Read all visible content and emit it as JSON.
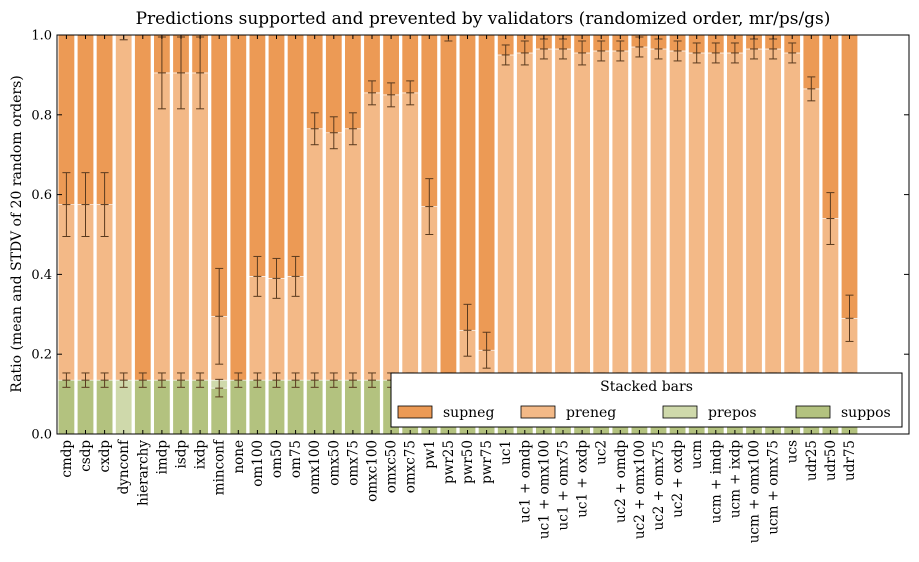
{
  "chart_data": {
    "type": "bar",
    "stacked": true,
    "title": "Predictions supported and prevented by validators (randomized order, mr/ps/gs)",
    "ylabel": "Ratio (mean and STDV of 20 random orders)",
    "xlabel": "",
    "ylim": [
      0,
      1
    ],
    "yticks": [
      "0.0",
      "0.2",
      "0.4",
      "0.6",
      "0.8",
      "1.0"
    ],
    "grid": false,
    "legend": {
      "title": "Stacked bars",
      "placement": "lower-right"
    },
    "categories": [
      "cmdp",
      "csdp",
      "cxdp",
      "dynconf",
      "hierarchy",
      "imdp",
      "isdp",
      "ixdp",
      "minconf",
      "none",
      "om100",
      "om50",
      "om75",
      "omx100",
      "omx50",
      "omx75",
      "omxc100",
      "omxc50",
      "omxc75",
      "pw1",
      "pwr25",
      "pwr50",
      "pwr75",
      "uc1",
      "uc1 + omdp",
      "uc1 + omx100",
      "uc1 + omx75",
      "uc1 + oxdp",
      "uc2",
      "uc2 + omdp",
      "uc2 + omx100",
      "uc2 + omx75",
      "uc2 + oxdp",
      "ucm",
      "ucm + imdp",
      "ucm + ixdp",
      "ucm + omx100",
      "ucm + omx75",
      "ucs",
      "udr25",
      "udr50",
      "udr75"
    ],
    "series": [
      {
        "name": "suppos",
        "color": "#b3c27f",
        "values": [
          0.135,
          0.135,
          0.135,
          0,
          0.135,
          0.135,
          0.135,
          0.135,
          0.115,
          0.135,
          0.135,
          0.135,
          0.135,
          0.135,
          0.135,
          0.135,
          0.135,
          0.135,
          0.135,
          0.135,
          0.135,
          0.135,
          0.135,
          0.135,
          0.135,
          0.135,
          0.135,
          0.135,
          0.135,
          0.135,
          0.135,
          0.135,
          0.135,
          0.135,
          0.135,
          0.135,
          0.135,
          0.135,
          0.135,
          0.135,
          0.135,
          0.135
        ],
        "err": [
          0.018,
          0.018,
          0.018,
          0,
          0.018,
          0.018,
          0.018,
          0.018,
          0.022,
          0.018,
          0.018,
          0.018,
          0.018,
          0.018,
          0.018,
          0.018,
          0.018,
          0.018,
          0.018,
          0.018,
          0.018,
          0.018,
          0.018,
          0.018,
          0.018,
          0.018,
          0.018,
          0.018,
          0.018,
          0.018,
          0.018,
          0.018,
          0.018,
          0.018,
          0.018,
          0.018,
          0.018,
          0.018,
          0.018,
          0.018,
          0.018,
          0.018
        ]
      },
      {
        "name": "prepos",
        "color": "#cfd9ab",
        "values": [
          0,
          0,
          0,
          0.135,
          0,
          0,
          0,
          0,
          0.02,
          0,
          0,
          0,
          0,
          0,
          0,
          0,
          0,
          0,
          0,
          0,
          0,
          0,
          0,
          0,
          0,
          0,
          0,
          0,
          0,
          0,
          0,
          0,
          0,
          0,
          0,
          0,
          0,
          0,
          0,
          0,
          0,
          0
        ],
        "err": [
          0,
          0,
          0,
          0.018,
          0,
          0,
          0,
          0,
          0,
          0,
          0,
          0,
          0,
          0,
          0,
          0,
          0,
          0,
          0,
          0,
          0,
          0,
          0,
          0,
          0,
          0,
          0,
          0,
          0,
          0,
          0,
          0,
          0,
          0,
          0,
          0,
          0,
          0,
          0,
          0,
          0,
          0
        ]
      },
      {
        "name": "preneg",
        "color": "#f3b987",
        "values": [
          0.44,
          0.44,
          0.44,
          0.865,
          0,
          0.77,
          0.77,
          0.77,
          0.16,
          0,
          0.26,
          0.255,
          0.26,
          0.63,
          0.62,
          0.63,
          0.72,
          0.715,
          0.72,
          0.435,
          0,
          0.125,
          0.075,
          0.815,
          0.82,
          0.83,
          0.83,
          0.82,
          0.825,
          0.825,
          0.835,
          0.83,
          0.825,
          0.82,
          0.82,
          0.82,
          0.83,
          0.83,
          0.82,
          0.73,
          0.405,
          0.155
        ],
        "err": [
          0.08,
          0.08,
          0.08,
          0.012,
          0,
          0.09,
          0.09,
          0.09,
          0.12,
          0,
          0.05,
          0.05,
          0.05,
          0.04,
          0.04,
          0.04,
          0.03,
          0.03,
          0.03,
          0.07,
          0,
          0.065,
          0.045,
          0.025,
          0.03,
          0.025,
          0.025,
          0.03,
          0.025,
          0.025,
          0.025,
          0.025,
          0.025,
          0.025,
          0.025,
          0.025,
          0.025,
          0.025,
          0.025,
          0.03,
          0.065,
          0.058
        ]
      },
      {
        "name": "supneg",
        "color": "#ec9a55",
        "values": [
          0.425,
          0.425,
          0.425,
          0,
          0.865,
          0.095,
          0.095,
          0.095,
          0.705,
          0.865,
          0.605,
          0.61,
          0.605,
          0.235,
          0.245,
          0.235,
          0.145,
          0.15,
          0.145,
          0.43,
          0.865,
          0.74,
          0.79,
          0.05,
          0.045,
          0.035,
          0.035,
          0.045,
          0.04,
          0.04,
          0.03,
          0.035,
          0.04,
          0.045,
          0.045,
          0.045,
          0.035,
          0.035,
          0.045,
          0.135,
          0.46,
          0.71
        ],
        "err": [
          0,
          0,
          0,
          0,
          0,
          0,
          0,
          0,
          0,
          0,
          0,
          0,
          0,
          0,
          0,
          0,
          0,
          0,
          0,
          0,
          0.015,
          0,
          0,
          0,
          0,
          0,
          0,
          0,
          0,
          0,
          0,
          0,
          0,
          0,
          0,
          0,
          0,
          0,
          0,
          0,
          0,
          0
        ]
      }
    ]
  }
}
